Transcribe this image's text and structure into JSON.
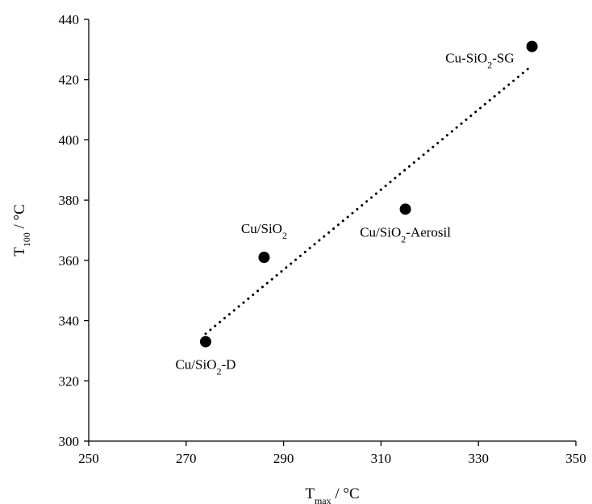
{
  "chart_data": {
    "type": "scatter",
    "title": "",
    "xlabel": {
      "main": "T",
      "sub": "max",
      "rest": " / °C"
    },
    "ylabel": {
      "main": "T",
      "sub": "100",
      "rest": " / °C"
    },
    "xlim": [
      250,
      350
    ],
    "ylim": [
      300,
      440
    ],
    "xticks": [
      250,
      270,
      290,
      310,
      330,
      350
    ],
    "yticks": [
      300,
      320,
      340,
      360,
      380,
      400,
      420,
      440
    ],
    "grid": false,
    "legend": "none",
    "marker_color": "#000000",
    "points": [
      {
        "x": 274,
        "y": 333,
        "label": {
          "pre": "Cu/SiO",
          "sub": "2",
          "post": "-D"
        },
        "label_pos": "below"
      },
      {
        "x": 286,
        "y": 361,
        "label": {
          "pre": "Cu/SiO",
          "sub": "2",
          "post": ""
        },
        "label_pos": "above"
      },
      {
        "x": 315,
        "y": 377,
        "label": {
          "pre": "Cu/SiO",
          "sub": "2",
          "post": "-Aerosil"
        },
        "label_pos": "below"
      },
      {
        "x": 341,
        "y": 431,
        "label": {
          "pre": "Cu-SiO",
          "sub": "2",
          "post": "-SG"
        },
        "label_pos": "left"
      }
    ],
    "trendline": {
      "style": "dotted",
      "type": "linear",
      "x_range": [
        274,
        341
      ]
    }
  }
}
